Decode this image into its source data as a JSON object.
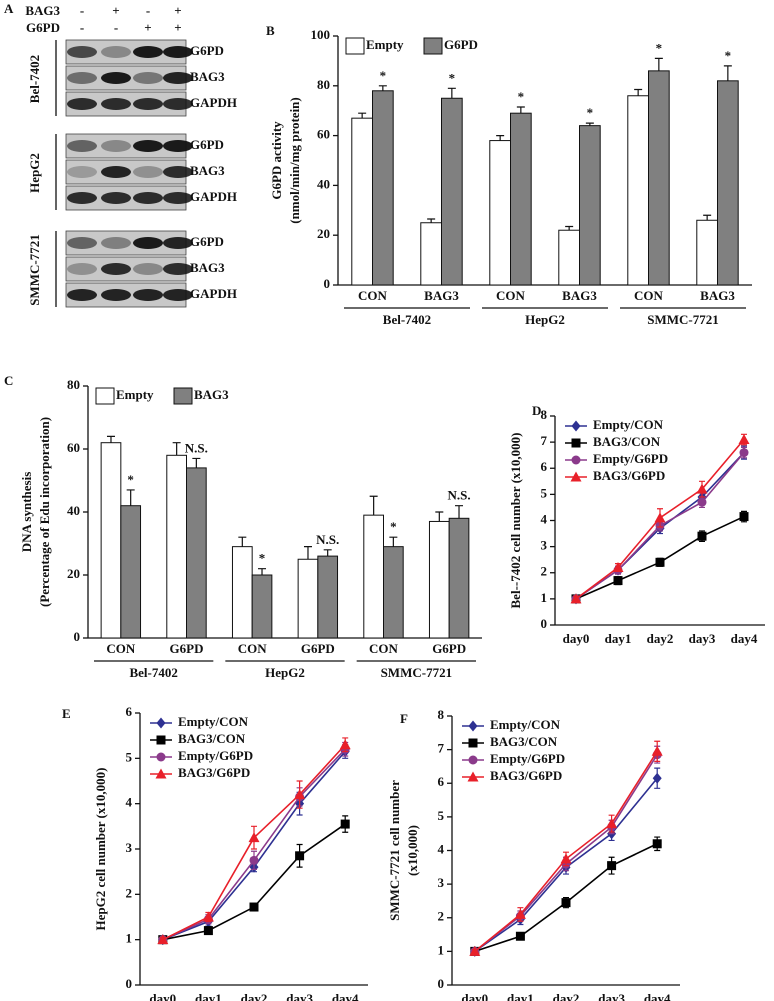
{
  "panel_a": {
    "panel": "A",
    "rows": [
      {
        "label": "BAG3",
        "signs": [
          "-",
          "+",
          "-",
          "+"
        ]
      },
      {
        "label": "G6PD",
        "signs": [
          "-",
          "-",
          "+",
          "+"
        ]
      }
    ],
    "cell_lines": [
      {
        "name": "Bel-7402",
        "bands": [
          "G6PD",
          "BAG3",
          "GAPDH"
        ]
      },
      {
        "name": "HepG2",
        "bands": [
          "G6PD",
          "BAG3",
          "GAPDH"
        ]
      },
      {
        "name": "SMMC-7721",
        "bands": [
          "G6PD",
          "BAG3",
          "GAPDH"
        ]
      }
    ]
  },
  "chart_data": [
    {
      "type": "bar",
      "panel": "B",
      "ylabel": [
        "G6PD activity",
        "(nmol/min/mg protein)"
      ],
      "categories": [
        "CON",
        "BAG3",
        "CON",
        "BAG3",
        "CON",
        "BAG3"
      ],
      "group_labels": [
        "Bel-7402",
        "HepG2",
        "SMMC-7721"
      ],
      "series": [
        {
          "name": "Empty",
          "color": "#ffffff",
          "values": [
            67,
            25,
            58,
            22,
            76,
            26
          ],
          "errors": [
            2,
            1.5,
            2,
            1.5,
            2.5,
            2
          ]
        },
        {
          "name": "G6PD",
          "color": "#808080",
          "values": [
            78,
            75,
            69,
            64,
            86,
            82
          ],
          "errors": [
            2,
            4,
            2.5,
            1,
            5,
            6
          ],
          "sig": [
            "*",
            "*",
            "*",
            "*",
            "*",
            "*"
          ]
        }
      ],
      "ylim": [
        0,
        100
      ],
      "yticks": [
        0,
        20,
        40,
        60,
        80,
        100
      ],
      "legend": "top-left"
    },
    {
      "type": "bar",
      "panel": "C",
      "ylabel": [
        "DNA synthesis",
        "(Percentage of Edu incorporation)"
      ],
      "categories": [
        "CON",
        "G6PD",
        "CON",
        "G6PD",
        "CON",
        "G6PD"
      ],
      "group_labels": [
        "Bel-7402",
        "HepG2",
        "SMMC-7721"
      ],
      "series": [
        {
          "name": "Empty",
          "color": "#ffffff",
          "values": [
            62,
            58,
            29,
            25,
            39,
            37
          ],
          "errors": [
            2,
            4,
            3,
            4,
            6,
            3
          ]
        },
        {
          "name": "BAG3",
          "color": "#808080",
          "values": [
            42,
            54,
            20,
            26,
            29,
            38
          ],
          "errors": [
            5,
            3,
            2,
            2,
            3,
            4
          ],
          "sig": [
            "*",
            "N.S.",
            "*",
            "N.S.",
            "*",
            "N.S."
          ]
        }
      ],
      "ylim": [
        0,
        80
      ],
      "yticks": [
        0,
        20,
        40,
        60,
        80
      ],
      "legend": "top-left"
    },
    {
      "type": "line",
      "panel": "D",
      "ylabel": [
        "Bel--7402 cell number (x10,000)"
      ],
      "categories": [
        "day0",
        "day1",
        "day2",
        "day3",
        "day4"
      ],
      "series": [
        {
          "name": "Empty/CON",
          "color": "#2e3192",
          "marker": "diamond",
          "values": [
            1,
            2.1,
            3.7,
            4.9,
            6.6
          ],
          "errors": [
            0.1,
            0.15,
            0.2,
            0.25,
            0.25
          ]
        },
        {
          "name": "BAG3/CON",
          "color": "#000000",
          "marker": "square",
          "values": [
            1,
            1.7,
            2.4,
            3.4,
            4.15
          ],
          "errors": [
            0.1,
            0.15,
            0.15,
            0.2,
            0.2
          ]
        },
        {
          "name": "Empty/G6PD",
          "color": "#8b3a8b",
          "marker": "circle",
          "values": [
            1,
            2.1,
            3.8,
            4.7,
            6.6
          ],
          "errors": [
            0.1,
            0.15,
            0.2,
            0.2,
            0.2
          ]
        },
        {
          "name": "BAG3/G6PD",
          "color": "#e8202a",
          "marker": "triangle",
          "values": [
            1,
            2.2,
            4.1,
            5.2,
            7.1
          ],
          "errors": [
            0.1,
            0.15,
            0.35,
            0.3,
            0.2
          ]
        }
      ],
      "ylim": [
        0,
        8
      ],
      "yticks": [
        0,
        1,
        2,
        3,
        4,
        5,
        6,
        7,
        8
      ],
      "legend": "top-left"
    },
    {
      "type": "line",
      "panel": "E",
      "ylabel": [
        "HepG2 cell number (x10,000)"
      ],
      "categories": [
        "day0",
        "day1",
        "day2",
        "day3",
        "day4"
      ],
      "series": [
        {
          "name": "Empty/CON",
          "color": "#2e3192",
          "marker": "diamond",
          "values": [
            1,
            1.4,
            2.6,
            4.0,
            5.15
          ],
          "errors": [
            0.05,
            0.1,
            0.1,
            0.25,
            0.15
          ]
        },
        {
          "name": "BAG3/CON",
          "color": "#000000",
          "marker": "square",
          "values": [
            1,
            1.2,
            1.72,
            2.85,
            3.55
          ],
          "errors": [
            0.05,
            0.08,
            0.07,
            0.25,
            0.18
          ]
        },
        {
          "name": "Empty/G6PD",
          "color": "#8b3a8b",
          "marker": "circle",
          "values": [
            1,
            1.45,
            2.75,
            4.15,
            5.2
          ],
          "errors": [
            0.05,
            0.1,
            0.2,
            0.2,
            0.15
          ]
        },
        {
          "name": "BAG3/G6PD",
          "color": "#e8202a",
          "marker": "triangle",
          "values": [
            1,
            1.5,
            3.25,
            4.2,
            5.3
          ],
          "errors": [
            0.05,
            0.1,
            0.25,
            0.3,
            0.15
          ]
        }
      ],
      "ylim": [
        0,
        6
      ],
      "yticks": [
        0,
        1,
        2,
        3,
        4,
        5,
        6
      ],
      "legend": "top-left"
    },
    {
      "type": "line",
      "panel": "F",
      "ylabel": [
        "SMMC-7721 cell number",
        "(x10,000)"
      ],
      "categories": [
        "day0",
        "day1",
        "day2",
        "day3",
        "day4"
      ],
      "series": [
        {
          "name": "Empty/CON",
          "color": "#2e3192",
          "marker": "diamond",
          "values": [
            1,
            1.95,
            3.5,
            4.5,
            6.15
          ],
          "errors": [
            0.05,
            0.15,
            0.2,
            0.2,
            0.3
          ]
        },
        {
          "name": "BAG3/CON",
          "color": "#000000",
          "marker": "square",
          "values": [
            1,
            1.45,
            2.45,
            3.55,
            4.2
          ],
          "errors": [
            0.05,
            0.1,
            0.15,
            0.25,
            0.2
          ]
        },
        {
          "name": "Empty/G6PD",
          "color": "#8b3a8b",
          "marker": "circle",
          "values": [
            1,
            2.05,
            3.6,
            4.7,
            6.85
          ],
          "errors": [
            0.05,
            0.15,
            0.2,
            0.2,
            0.25
          ]
        },
        {
          "name": "BAG3/G6PD",
          "color": "#e8202a",
          "marker": "triangle",
          "values": [
            1,
            2.1,
            3.75,
            4.8,
            6.95
          ],
          "errors": [
            0.05,
            0.2,
            0.2,
            0.25,
            0.3
          ]
        }
      ],
      "ylim": [
        0,
        8
      ],
      "yticks": [
        0,
        1,
        2,
        3,
        4,
        5,
        6,
        7,
        8
      ],
      "legend": "top-left"
    }
  ]
}
